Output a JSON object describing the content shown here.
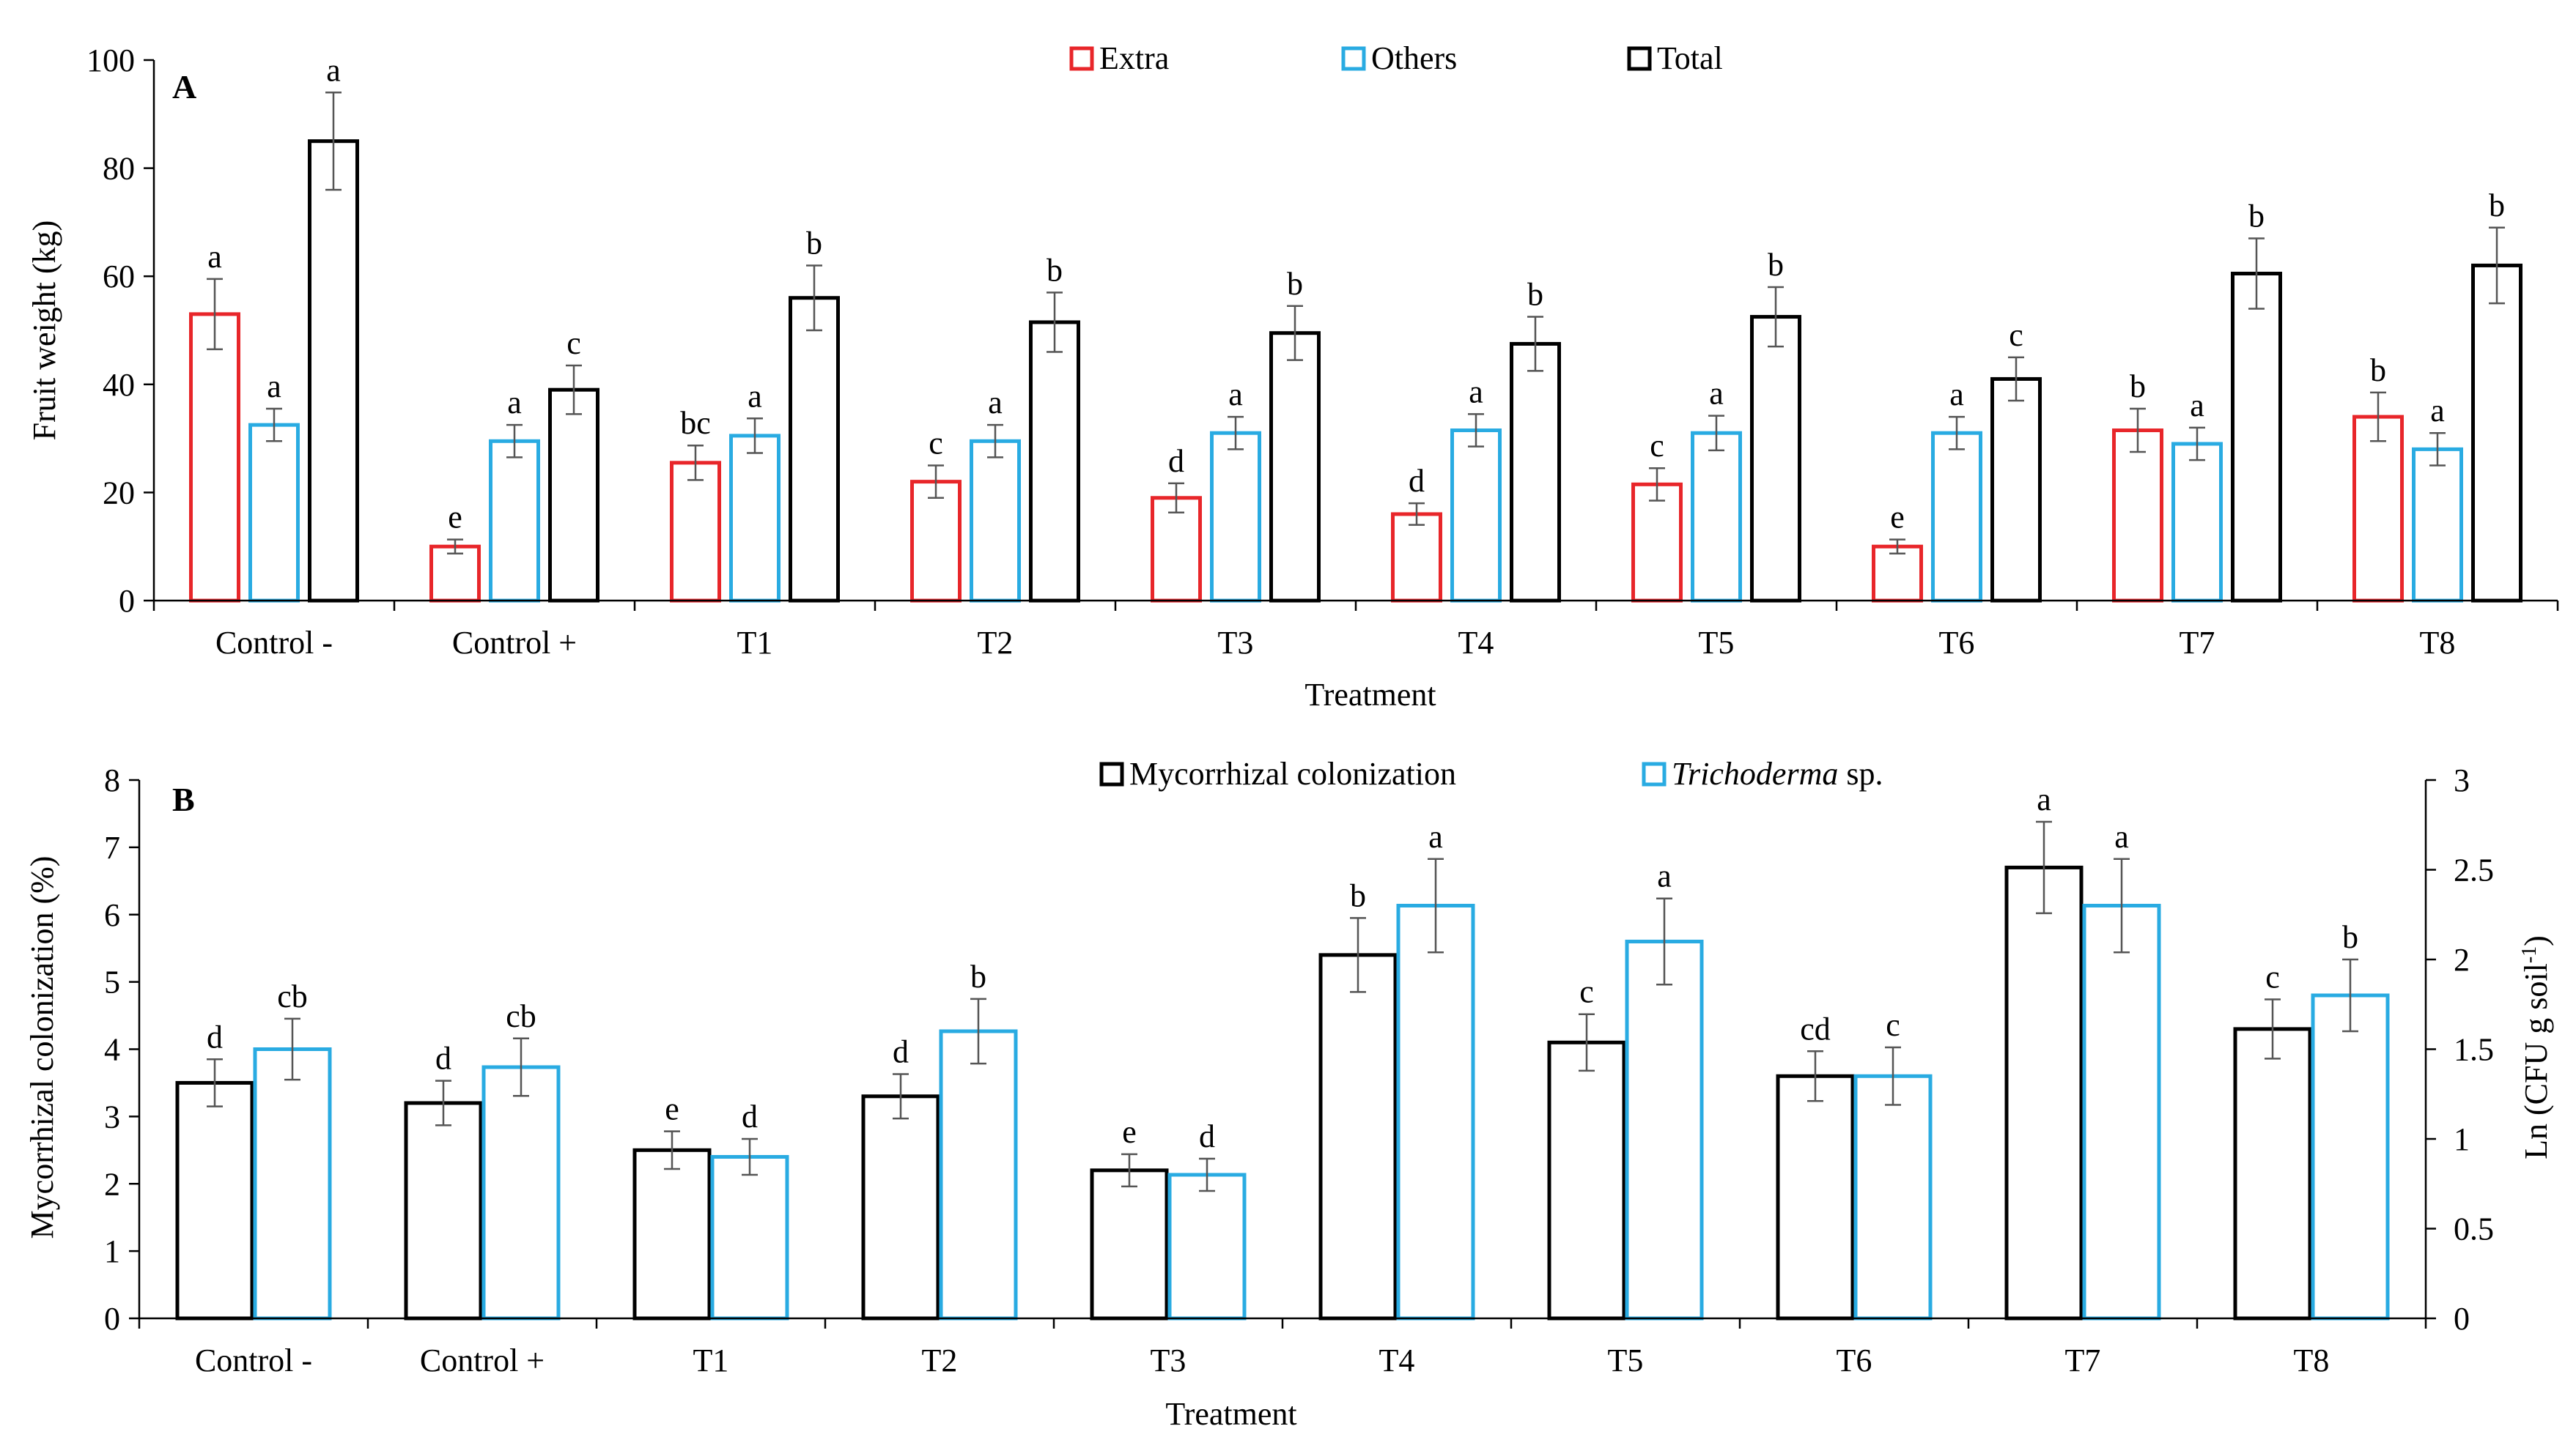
{
  "charts": [
    {
      "panel_label": "A",
      "type": "bar",
      "ylabel": "Fruit weight (kg)",
      "xlabel": "Treatment",
      "ylim": [
        0,
        100
      ],
      "yticks": [
        "0",
        "20",
        "40",
        "60",
        "80",
        "100"
      ],
      "grid": false,
      "legend_position": "top-center",
      "categories": [
        "Control -",
        "Control +",
        "T1",
        "T2",
        "T3",
        "T4",
        "T5",
        "T6",
        "T7",
        "T8"
      ],
      "series": [
        {
          "name": "Extra",
          "color": "#e8262a",
          "values": [
            53,
            10,
            25.5,
            22,
            19,
            16,
            21.5,
            10,
            31.5,
            34
          ],
          "errors": [
            6.5,
            1.3,
            3.2,
            3,
            2.7,
            2,
            3,
            1.3,
            4,
            4.5
          ],
          "letters": [
            "a",
            "e",
            "bc",
            "c",
            "d",
            "d",
            "c",
            "e",
            "b",
            "b"
          ]
        },
        {
          "name": "Others",
          "color": "#29abe2",
          "values": [
            32.5,
            29.5,
            30.5,
            29.5,
            31,
            31.5,
            31,
            31,
            29,
            28
          ],
          "errors": [
            3,
            3,
            3.2,
            3,
            3,
            3,
            3.2,
            3,
            3,
            3
          ],
          "letters": [
            "a",
            "a",
            "a",
            "a",
            "a",
            "a",
            "a",
            "a",
            "a",
            "a"
          ]
        },
        {
          "name": "Total",
          "color": "#000000",
          "values": [
            85,
            39,
            56,
            51.5,
            49.5,
            47.5,
            52.5,
            41,
            60.5,
            62
          ],
          "errors": [
            9,
            4.5,
            6,
            5.5,
            5,
            5,
            5.5,
            4,
            6.5,
            7
          ],
          "letters": [
            "a",
            "c",
            "b",
            "b",
            "b",
            "b",
            "b",
            "c",
            "b",
            "b"
          ]
        }
      ]
    },
    {
      "panel_label": "B",
      "type": "bar",
      "ylabel": "Mycorrhizal colonization (%)",
      "ylabel_right": "Ln (CFU g soil",
      "ylabel_right_sup": "-1",
      "ylabel_right_close": ")",
      "xlabel": "Treatment",
      "ylim": [
        0,
        8
      ],
      "ylim_right": [
        0,
        3
      ],
      "yticks": [
        "0",
        "1",
        "2",
        "3",
        "4",
        "5",
        "6",
        "7",
        "8"
      ],
      "yticks_right": [
        "0",
        "0.5",
        "1",
        "1.5",
        "2",
        "2.5",
        "3"
      ],
      "grid": false,
      "legend_position": "top-center",
      "categories": [
        "Control -",
        "Control +",
        "T1",
        "T2",
        "T3",
        "T4",
        "T5",
        "T6",
        "T7",
        "T8"
      ],
      "series": [
        {
          "name": "Mycorrhizal colonization",
          "axis": "left",
          "color": "#000000",
          "values": [
            3.5,
            3.2,
            2.5,
            3.3,
            2.2,
            5.4,
            4.1,
            3.6,
            6.7,
            4.3
          ],
          "errors": [
            0.35,
            0.33,
            0.28,
            0.33,
            0.24,
            0.55,
            0.42,
            0.37,
            0.68,
            0.44
          ],
          "letters": [
            "d",
            "d",
            "e",
            "d",
            "e",
            "b",
            "c",
            "cd",
            "a",
            "c"
          ]
        },
        {
          "name_italic": "Trichoderma",
          "name_rest": " sp.",
          "axis": "right",
          "color": "#29abe2",
          "values": [
            1.5,
            1.4,
            0.9,
            1.6,
            0.8,
            2.3,
            2.1,
            1.35,
            2.3,
            1.8
          ],
          "errors": [
            0.17,
            0.16,
            0.1,
            0.18,
            0.09,
            0.26,
            0.24,
            0.16,
            0.26,
            0.2
          ],
          "letters": [
            "cb",
            "cb",
            "d",
            "b",
            "d",
            "a",
            "a",
            "c",
            "a",
            "b"
          ]
        }
      ]
    }
  ]
}
